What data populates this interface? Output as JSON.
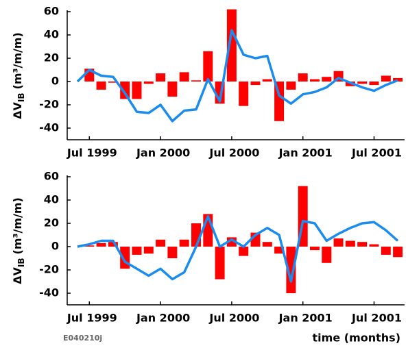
{
  "chart_data": [
    {
      "type": "bar",
      "y_label": {
        "main": "ΔV",
        "sub": "IB",
        "unit": "(m³/m/m)"
      },
      "categories": [
        null,
        "Jul 1999",
        null,
        null,
        null,
        null,
        null,
        "Jan 2000",
        null,
        null,
        null,
        null,
        null,
        "Jul 2000",
        null,
        null,
        null,
        null,
        null,
        "Jan 2001",
        null,
        null,
        null,
        null,
        null,
        "Jul 2001",
        null,
        null
      ],
      "ylim": [
        -50,
        60
      ],
      "yticks": [
        -40,
        -20,
        0,
        20,
        40,
        60
      ],
      "series": [
        {
          "type": "bar",
          "color": "#ff0000",
          "values": [
            null,
            11,
            -7,
            -1,
            -15,
            -15,
            -2,
            7,
            -13,
            8,
            1,
            26,
            -19,
            62,
            -21,
            -3,
            2,
            -34,
            -7,
            7,
            2,
            4,
            9,
            -4,
            -2,
            -3,
            5,
            3
          ]
        },
        {
          "type": "line",
          "color": "#1a8cf0",
          "values": [
            0,
            10,
            5,
            4,
            -10,
            -26,
            -27,
            -20,
            -34,
            -25,
            -24,
            2,
            -17,
            44,
            23,
            20,
            22,
            -12,
            -19,
            -11,
            -9,
            -5,
            3,
            -1,
            -5,
            -8,
            -3,
            1
          ]
        }
      ]
    },
    {
      "type": "bar",
      "y_label": {
        "main": "ΔV",
        "sub": "IB",
        "unit": "(m³/m/m)"
      },
      "categories": [
        null,
        "Jul 1999",
        null,
        null,
        null,
        null,
        null,
        "Jan 2000",
        null,
        null,
        null,
        null,
        null,
        "Jul 2000",
        null,
        null,
        null,
        null,
        null,
        "Jan 2001",
        null,
        null,
        null,
        null,
        null,
        "Jul 2001",
        null,
        null
      ],
      "ylim": [
        -50,
        60
      ],
      "yticks": [
        -40,
        -20,
        0,
        20,
        40,
        60
      ],
      "x_label": "time (months)",
      "note": "E040210j",
      "series": [
        {
          "type": "bar",
          "color": "#ff0000",
          "values": [
            null,
            1,
            3,
            4,
            -19,
            -7,
            -6,
            6,
            -10,
            6,
            20,
            28,
            -28,
            8,
            -8,
            12,
            4,
            -6,
            -40,
            52,
            -3,
            -14,
            7,
            5,
            4,
            2,
            -7,
            -9
          ]
        },
        {
          "type": "line",
          "color": "#1a8cf0",
          "values": [
            0,
            2,
            5,
            5,
            -13,
            -19,
            -25,
            -19,
            -28,
            -22,
            0,
            26,
            0,
            6,
            0,
            10,
            16,
            10,
            -30,
            22,
            20,
            5,
            11,
            16,
            20,
            21,
            14,
            5
          ]
        }
      ]
    }
  ]
}
